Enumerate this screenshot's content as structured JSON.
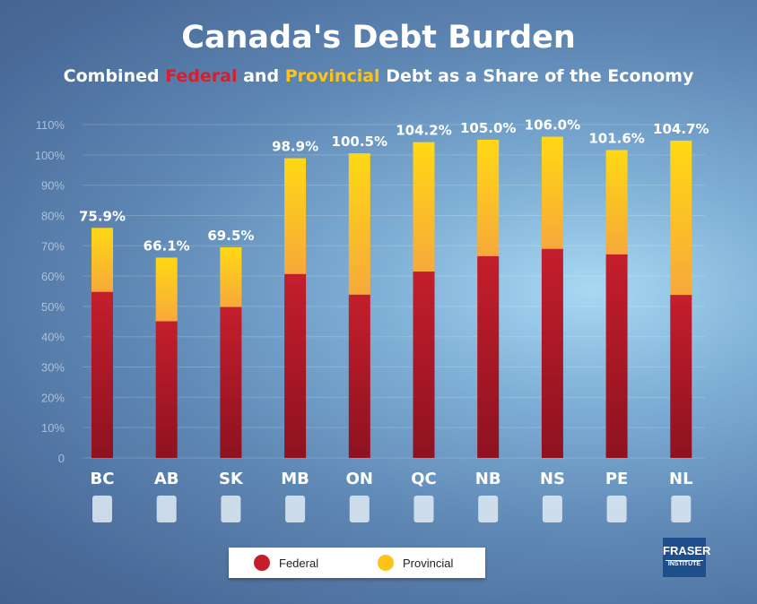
{
  "title": "Canada's Debt Burden",
  "subtitle": {
    "pre": "Combined ",
    "federal": "Federal",
    "mid": " and ",
    "provincial": "Provincial",
    "post": " Debt as a Share of the Economy"
  },
  "legend": {
    "federal": "Federal",
    "provincial": "Provincial"
  },
  "logo": {
    "line1": "FRASER",
    "line2": "INSTITUTE"
  },
  "colors": {
    "federal": "#b81c2a",
    "provincial": "#fcc419"
  },
  "chart_data": {
    "type": "bar",
    "stacked": true,
    "categories": [
      "BC",
      "AB",
      "SK",
      "MB",
      "ON",
      "QC",
      "NB",
      "NS",
      "PE",
      "NL"
    ],
    "series": [
      {
        "name": "Federal",
        "values": [
          54.8,
          45.1,
          49.8,
          60.7,
          53.9,
          61.5,
          66.6,
          69.0,
          67.2,
          53.8
        ]
      },
      {
        "name": "Provincial",
        "values": [
          21.1,
          21.0,
          19.7,
          38.2,
          46.6,
          42.7,
          38.4,
          37.0,
          34.4,
          50.9
        ]
      }
    ],
    "totals": [
      75.9,
      66.1,
      69.5,
      98.9,
      100.5,
      104.2,
      105.0,
      106.0,
      101.6,
      104.7
    ],
    "total_labels": [
      "75.9%",
      "66.1%",
      "69.5%",
      "98.9%",
      "100.5%",
      "104.2%",
      "105.0%",
      "106.0%",
      "101.6%",
      "104.7%"
    ],
    "yticks": [
      "0",
      "10%",
      "20%",
      "30%",
      "40%",
      "50%",
      "60%",
      "70%",
      "80%",
      "90%",
      "100%",
      "110%"
    ],
    "ylim": [
      0,
      110
    ],
    "grid": true,
    "legend": "bottom"
  }
}
